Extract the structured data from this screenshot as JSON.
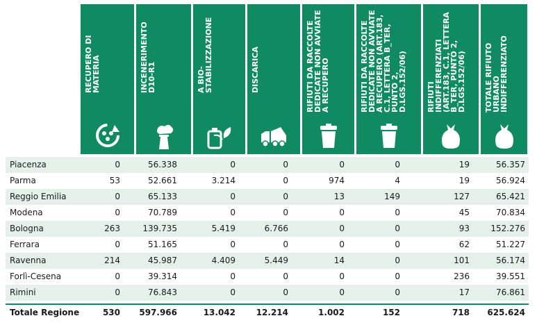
{
  "columns": [
    {
      "label": "Recupero di materia",
      "icon": "recycle-icon"
    },
    {
      "label": "Incenerimento D10-R1",
      "icon": "incinerator-icon"
    },
    {
      "label": "a bio-stabilizzazione",
      "icon": "bio-stabilization-icon"
    },
    {
      "label": "Discarica",
      "icon": "dump-truck-icon"
    },
    {
      "label": "Rifiuti da raccolte dedicate non avviate a recupero",
      "icon": "waste-bin-icon"
    },
    {
      "label": "Rifiuti da raccolte dedicate non avviate a recupero (art.183, c.1, lettera b_ter, punto 2, D.Lgs.152/06)",
      "icon": "waste-bin-icon"
    },
    {
      "label": "Rifiuti indifferenziati (art.183, c.1, lettera b_ter, punto 2, D.Lgs.152/06)",
      "icon": "garbage-bag-icon"
    },
    {
      "label": "Totale rifiuto urbano indifferenziato",
      "icon": "garbage-bag-icon"
    }
  ],
  "rows": [
    {
      "name": "Piacenza",
      "values": [
        "0",
        "56.338",
        "0",
        "0",
        "0",
        "0",
        "19",
        "56.357"
      ]
    },
    {
      "name": "Parma",
      "values": [
        "53",
        "52.661",
        "3.214",
        "0",
        "974",
        "4",
        "19",
        "56.924"
      ]
    },
    {
      "name": "Reggio Emilia",
      "values": [
        "0",
        "65.133",
        "0",
        "0",
        "13",
        "149",
        "127",
        "65.421"
      ]
    },
    {
      "name": "Modena",
      "values": [
        "0",
        "70.789",
        "0",
        "0",
        "0",
        "0",
        "45",
        "70.834"
      ]
    },
    {
      "name": "Bologna",
      "values": [
        "263",
        "139.735",
        "5.419",
        "6.766",
        "0",
        "0",
        "93",
        "152.276"
      ]
    },
    {
      "name": "Ferrara",
      "values": [
        "0",
        "51.165",
        "0",
        "0",
        "0",
        "0",
        "62",
        "51.227"
      ]
    },
    {
      "name": "Ravenna",
      "values": [
        "214",
        "45.987",
        "4.409",
        "5.449",
        "14",
        "0",
        "101",
        "56.174"
      ]
    },
    {
      "name": "Forlì-Cesena",
      "values": [
        "0",
        "39.314",
        "0",
        "0",
        "0",
        "0",
        "236",
        "39.551"
      ]
    },
    {
      "name": "Rimini",
      "values": [
        "0",
        "76.843",
        "0",
        "0",
        "0",
        "0",
        "17",
        "76.861"
      ]
    }
  ],
  "total": {
    "name": "Totale Regione",
    "values": [
      "530",
      "597.966",
      "13.042",
      "12.214",
      "1.002",
      "152",
      "718",
      "625.624"
    ]
  },
  "colors": {
    "header": "#0f8a62",
    "stripe": "#e4f0e9"
  }
}
